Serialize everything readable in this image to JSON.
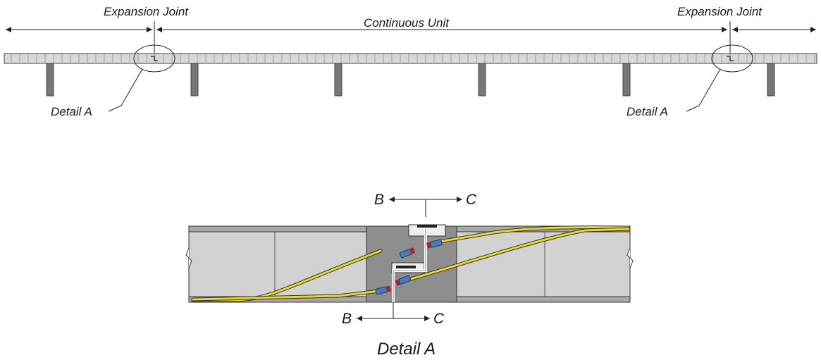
{
  "overview": {
    "left_joint_label": "Expansion Joint",
    "right_joint_label": "Expansion Joint",
    "unit_label": "Continuous Unit",
    "left_detail_callout": "Detail A",
    "right_detail_callout": "Detail A"
  },
  "detail": {
    "section_top_left": "B",
    "section_top_right": "C",
    "section_bottom_left": "B",
    "section_bottom_right": "C",
    "title": "Detail A"
  },
  "colors": {
    "line": "#222222",
    "deck_fill": "#d4d4d4",
    "pier_fill": "#777777",
    "slab_light": "#cfcfcf",
    "slab_dark": "#9a9a9a",
    "cable": "#e8d62a",
    "connector": "#4a78b8",
    "connector_tip": "#b02020"
  }
}
